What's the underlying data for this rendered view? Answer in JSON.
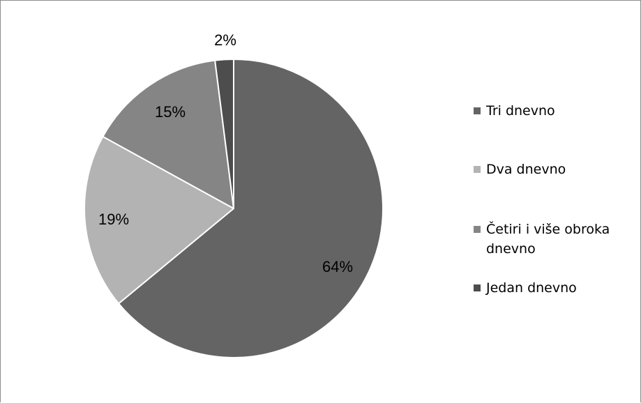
{
  "chart_data": {
    "type": "pie",
    "title": "",
    "legend_position": "right",
    "slices": [
      {
        "label": "Tri dnevno",
        "value": 64,
        "display": "64%",
        "color": "#646464"
      },
      {
        "label": "Dva dnevno",
        "value": 19,
        "display": "19%",
        "color": "#b3b3b3"
      },
      {
        "label": "Četiri i više obroka dnevno",
        "value": 15,
        "display": "15%",
        "color": "#858585"
      },
      {
        "label": "Jedan dnevno",
        "value": 2,
        "display": "2%",
        "color": "#4d4d4d"
      }
    ],
    "slice_edge_color": "#ffffff",
    "start_angle": "12 o'clock",
    "direction": "clockwise"
  }
}
